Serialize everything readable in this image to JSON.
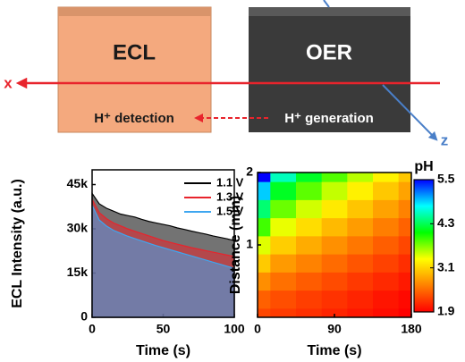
{
  "diagram": {
    "boxes": [
      "ECL",
      "OER"
    ],
    "axes": [
      "x",
      "z"
    ],
    "labels": [
      "H⁺ detection",
      "H⁺ generation"
    ]
  },
  "chart_data": [
    {
      "type": "area",
      "xlabel": "Time (s)",
      "ylabel": "ECL Intensity (a.u.)",
      "x": [
        0,
        5,
        10,
        15,
        20,
        25,
        30,
        35,
        40,
        45,
        50,
        55,
        60,
        65,
        70,
        75,
        80,
        85,
        90,
        95,
        100
      ],
      "series": [
        {
          "name": "1.1 V",
          "color": "#000000",
          "values": [
            42000,
            38500,
            37000,
            36000,
            35000,
            34500,
            34000,
            33200,
            32500,
            32000,
            31500,
            31000,
            30300,
            29800,
            29200,
            28700,
            28200,
            27600,
            27100,
            26600,
            26000
          ]
        },
        {
          "name": "1.3 V",
          "color": "#e8242c",
          "values": [
            40000,
            35500,
            33500,
            32000,
            31000,
            30000,
            29200,
            28400,
            27600,
            26800,
            26000,
            25400,
            24800,
            24200,
            23600,
            23100,
            22600,
            22100,
            21600,
            21100,
            20600
          ]
        },
        {
          "name": "1.5 V",
          "color": "#3ea6f0",
          "values": [
            38000,
            33000,
            31000,
            29500,
            28500,
            27500,
            26700,
            25900,
            25100,
            24300,
            23600,
            22900,
            22200,
            21500,
            20800,
            20100,
            19400,
            18700,
            18000,
            17300,
            16600
          ]
        }
      ],
      "xlim": [
        0,
        100
      ],
      "xticks": [
        0,
        50,
        100
      ],
      "ylim": [
        0,
        50000
      ],
      "yticks": [
        0,
        {
          "value": 15000,
          "label": "15k"
        },
        {
          "value": 30000,
          "label": "30k"
        },
        {
          "value": 45000,
          "label": "45k"
        }
      ],
      "legend": "upper right"
    },
    {
      "type": "heatmap",
      "xlabel": "Time (s)",
      "ylabel": "Distance (mm)",
      "x": [
        0,
        30,
        60,
        90,
        120,
        150,
        180
      ],
      "y": [
        0,
        0.25,
        0.5,
        0.75,
        1,
        1.25,
        1.5,
        1.75,
        2
      ],
      "z": [
        [
          2.3,
          2.23,
          2.17,
          2.1,
          2.03,
          1.97,
          1.9
        ],
        [
          2.44,
          2.34,
          2.25,
          2.18,
          2.1,
          2.02,
          1.95
        ],
        [
          2.7,
          2.53,
          2.42,
          2.32,
          2.22,
          2.13,
          2.04
        ],
        [
          3.04,
          2.77,
          2.63,
          2.5,
          2.38,
          2.27,
          2.16
        ],
        [
          3.43,
          3.06,
          2.87,
          2.71,
          2.57,
          2.43,
          2.3
        ],
        [
          3.88,
          3.4,
          3.15,
          2.95,
          2.78,
          2.61,
          2.45
        ],
        [
          4.38,
          3.76,
          3.47,
          3.22,
          3.01,
          2.81,
          2.63
        ],
        [
          4.92,
          4.16,
          3.8,
          3.51,
          3.26,
          3.03,
          2.82
        ],
        [
          5.5,
          4.59,
          4.17,
          3.83,
          3.54,
          3.27,
          3.02
        ]
      ],
      "xlim": [
        0,
        180
      ],
      "xticks": [
        0,
        90,
        180
      ],
      "ylim": [
        0,
        2
      ],
      "yticks": [
        1,
        2
      ],
      "colorbar": {
        "label": "pH",
        "lim": [
          1.9,
          5.5
        ],
        "ticks": [
          1.9,
          3.1,
          4.3,
          5.5
        ],
        "colormap": [
          "#ff0000",
          "#ff8000",
          "#ffff00",
          "#00ff00",
          "#00ffff",
          "#0000ff"
        ]
      }
    }
  ]
}
